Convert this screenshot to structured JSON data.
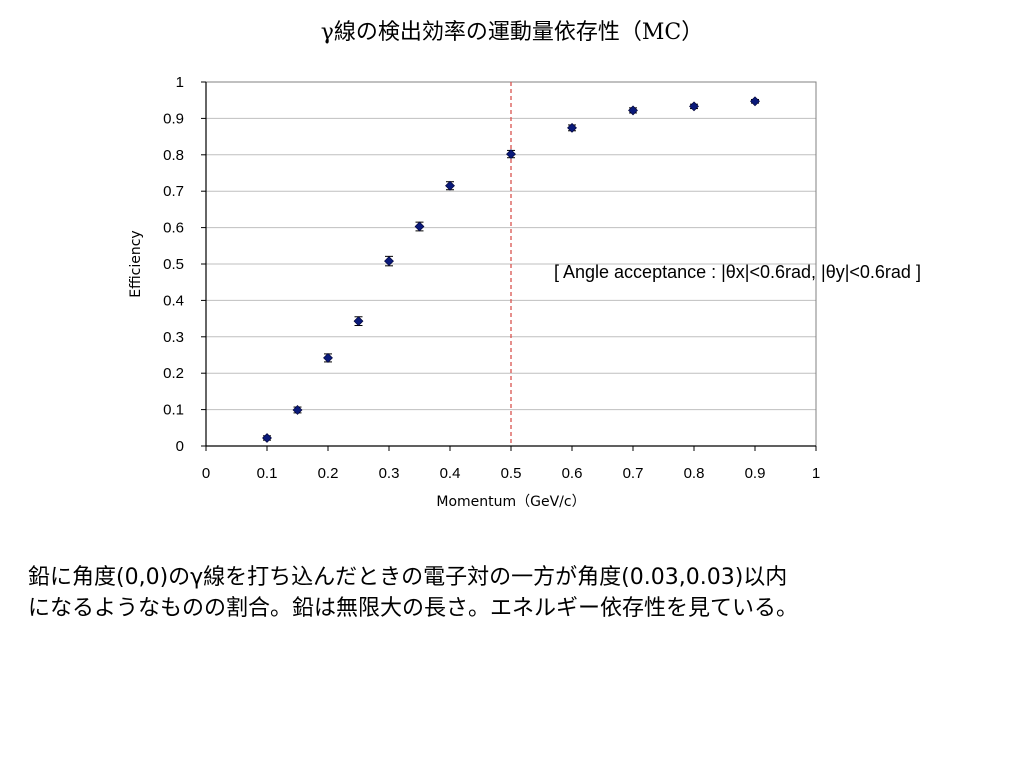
{
  "slide": {
    "title": "γ線の検出効率の運動量依存性（MC）",
    "caption_line1": "鉛に角度(0,0)のγ線を打ち込んだときの電子対の一方が角度(0.03,0.03)以内",
    "caption_line2": "になるようなものの割合。鉛は無限大の長さ。エネルギー依存性を見ている。"
  },
  "chart_data": {
    "type": "scatter",
    "title": "γ線の検出効率の運動量依存性（MC）",
    "xlabel": "Momentum（GeV/c）",
    "ylabel": "Efficiency",
    "xlim": [
      0,
      1
    ],
    "ylim": [
      0,
      1
    ],
    "x_ticks": [
      "0",
      "0.1",
      "0.2",
      "0.3",
      "0.4",
      "0.5",
      "0.6",
      "0.7",
      "0.8",
      "0.9",
      "1"
    ],
    "y_ticks": [
      "0",
      "0.1",
      "0.2",
      "0.3",
      "0.4",
      "0.5",
      "0.6",
      "0.7",
      "0.8",
      "0.9",
      "1"
    ],
    "grid": "horizontal",
    "legend": "none",
    "marker_color": "#0a1a7a",
    "reference_line": {
      "x": 0.5,
      "style": "dashed",
      "color": "#d9534f"
    },
    "annotation": "[ Angle acceptance : |θx|<0.6rad, |θy|<0.6rad ]",
    "series": [
      {
        "x": [
          0.1,
          0.15,
          0.2,
          0.25,
          0.3,
          0.35,
          0.4,
          0.5,
          0.6,
          0.7,
          0.8,
          0.9
        ],
        "y": [
          0.022,
          0.099,
          0.242,
          0.343,
          0.508,
          0.603,
          0.715,
          0.802,
          0.874,
          0.922,
          0.933,
          0.947
        ],
        "yerr": [
          0.006,
          0.008,
          0.011,
          0.012,
          0.013,
          0.012,
          0.011,
          0.01,
          0.008,
          0.007,
          0.006,
          0.005
        ]
      }
    ]
  }
}
